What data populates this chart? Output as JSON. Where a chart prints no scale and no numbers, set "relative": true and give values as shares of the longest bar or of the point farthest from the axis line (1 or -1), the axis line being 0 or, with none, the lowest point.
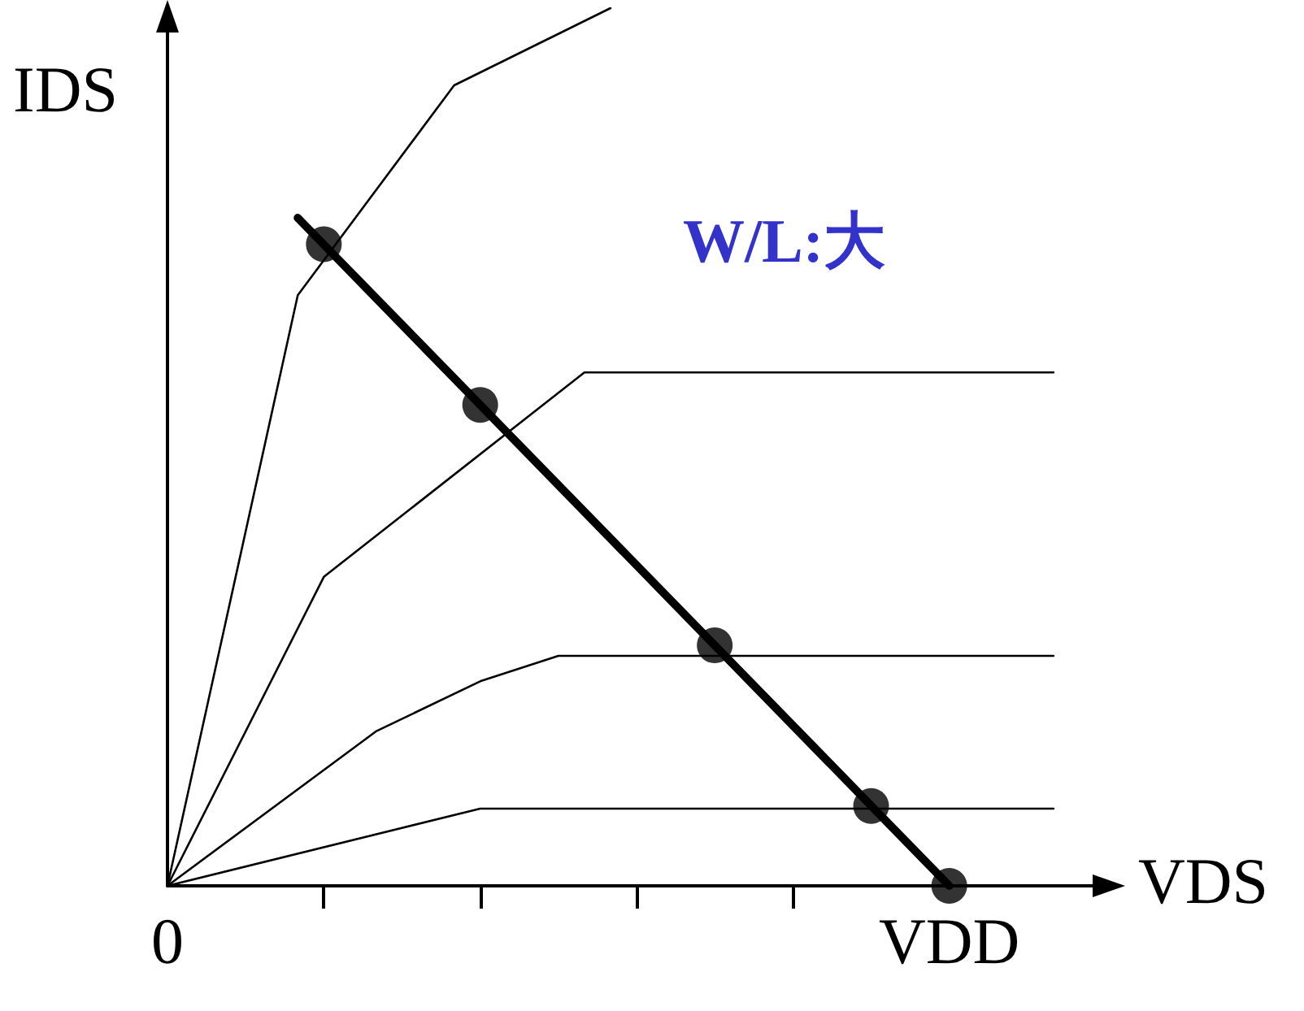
{
  "chart_data": {
    "type": "line",
    "relative": true,
    "ylabel": "IDS",
    "xlabel": "VDS",
    "categories": [
      "0",
      null,
      null,
      null,
      null,
      null,
      null,
      null,
      null,
      null,
      null,
      null,
      null,
      null,
      null,
      null,
      null,
      null,
      null,
      null,
      null,
      null,
      null,
      null,
      null,
      null,
      null,
      null,
      null,
      null,
      "VDD",
      null,
      null,
      null,
      null,
      null,
      null
    ],
    "series": [
      {
        "marker": "none",
        "color": "#000000",
        "values": [
          0,
          null,
          null,
          null,
          null,
          0.673,
          null,
          null,
          null,
          null,
          null,
          0.912,
          null,
          null,
          null,
          null,
          null,
          1,
          null,
          null,
          null,
          null,
          null,
          null,
          null,
          null,
          null,
          null,
          null,
          null,
          null,
          null,
          null,
          null,
          null,
          null,
          null
        ]
      },
      {
        "marker": "none",
        "color": "#000000",
        "values": [
          0,
          null,
          null,
          null,
          null,
          null,
          0.352,
          null,
          null,
          null,
          null,
          null,
          null,
          null,
          null,
          null,
          0.585,
          null,
          null,
          null,
          null,
          null,
          null,
          null,
          null,
          null,
          null,
          null,
          null,
          null,
          null,
          null,
          null,
          null,
          0.585,
          null,
          null
        ]
      },
      {
        "marker": "none",
        "color": "#000000",
        "values": [
          0,
          null,
          null,
          null,
          null,
          null,
          null,
          null,
          0.176,
          null,
          null,
          null,
          0.233,
          null,
          null,
          0.262,
          null,
          null,
          null,
          null,
          null,
          null,
          null,
          null,
          null,
          null,
          null,
          null,
          null,
          null,
          null,
          null,
          null,
          null,
          0.262,
          null,
          null
        ]
      },
      {
        "marker": "none",
        "color": "#000000",
        "values": [
          0,
          null,
          null,
          null,
          null,
          null,
          null,
          null,
          null,
          null,
          null,
          null,
          0.088,
          null,
          null,
          null,
          null,
          null,
          null,
          null,
          null,
          null,
          null,
          null,
          null,
          null,
          null,
          null,
          null,
          null,
          null,
          null,
          null,
          null,
          0.088,
          null,
          null
        ]
      },
      {
        "marker": "none",
        "color": "#000000",
        "values": [
          null,
          null,
          null,
          null,
          null,
          0.761,
          null,
          null,
          null,
          null,
          null,
          null,
          null,
          null,
          null,
          null,
          null,
          null,
          null,
          null,
          null,
          null,
          null,
          null,
          null,
          null,
          null,
          null,
          null,
          null,
          0,
          null,
          null,
          null,
          null,
          null,
          null
        ]
      },
      {
        "type": "scatter",
        "marker": "circle",
        "color": "#000000",
        "values": [
          null,
          null,
          null,
          null,
          null,
          null,
          0.731,
          null,
          null,
          null,
          null,
          null,
          0.548,
          null,
          null,
          null,
          null,
          null,
          null,
          null,
          null,
          0.274,
          null,
          null,
          null,
          null,
          null,
          0.091,
          null,
          null,
          0,
          null,
          null,
          null,
          null,
          null,
          null
        ]
      }
    ],
    "annotations": [
      "W/L:大"
    ],
    "grid": false
  }
}
